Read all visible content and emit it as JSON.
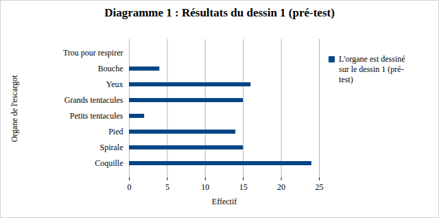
{
  "chart_data": {
    "type": "bar",
    "orientation": "horizontal",
    "title": "Diagramme 1 : Résultats du dessin 1 (pré-test)",
    "x_label": "Effectif",
    "y_label": "Organe de l'escargot",
    "categories": [
      "Trou pour respirer",
      "Bouche",
      "Yeux",
      "Grands tentacules",
      "Petits tentacules",
      "Pied",
      "Spirale",
      "Coquille"
    ],
    "series": [
      {
        "name": "L'organe est dessiné sur le dessin 1 (pré-test)",
        "color": "#004586",
        "values": [
          0,
          4,
          16,
          15,
          2,
          14,
          15,
          24
        ]
      }
    ],
    "xlim": [
      0,
      25
    ],
    "xticks": [
      0,
      5,
      10,
      15,
      20,
      25
    ],
    "grid": true,
    "legend": "right"
  }
}
